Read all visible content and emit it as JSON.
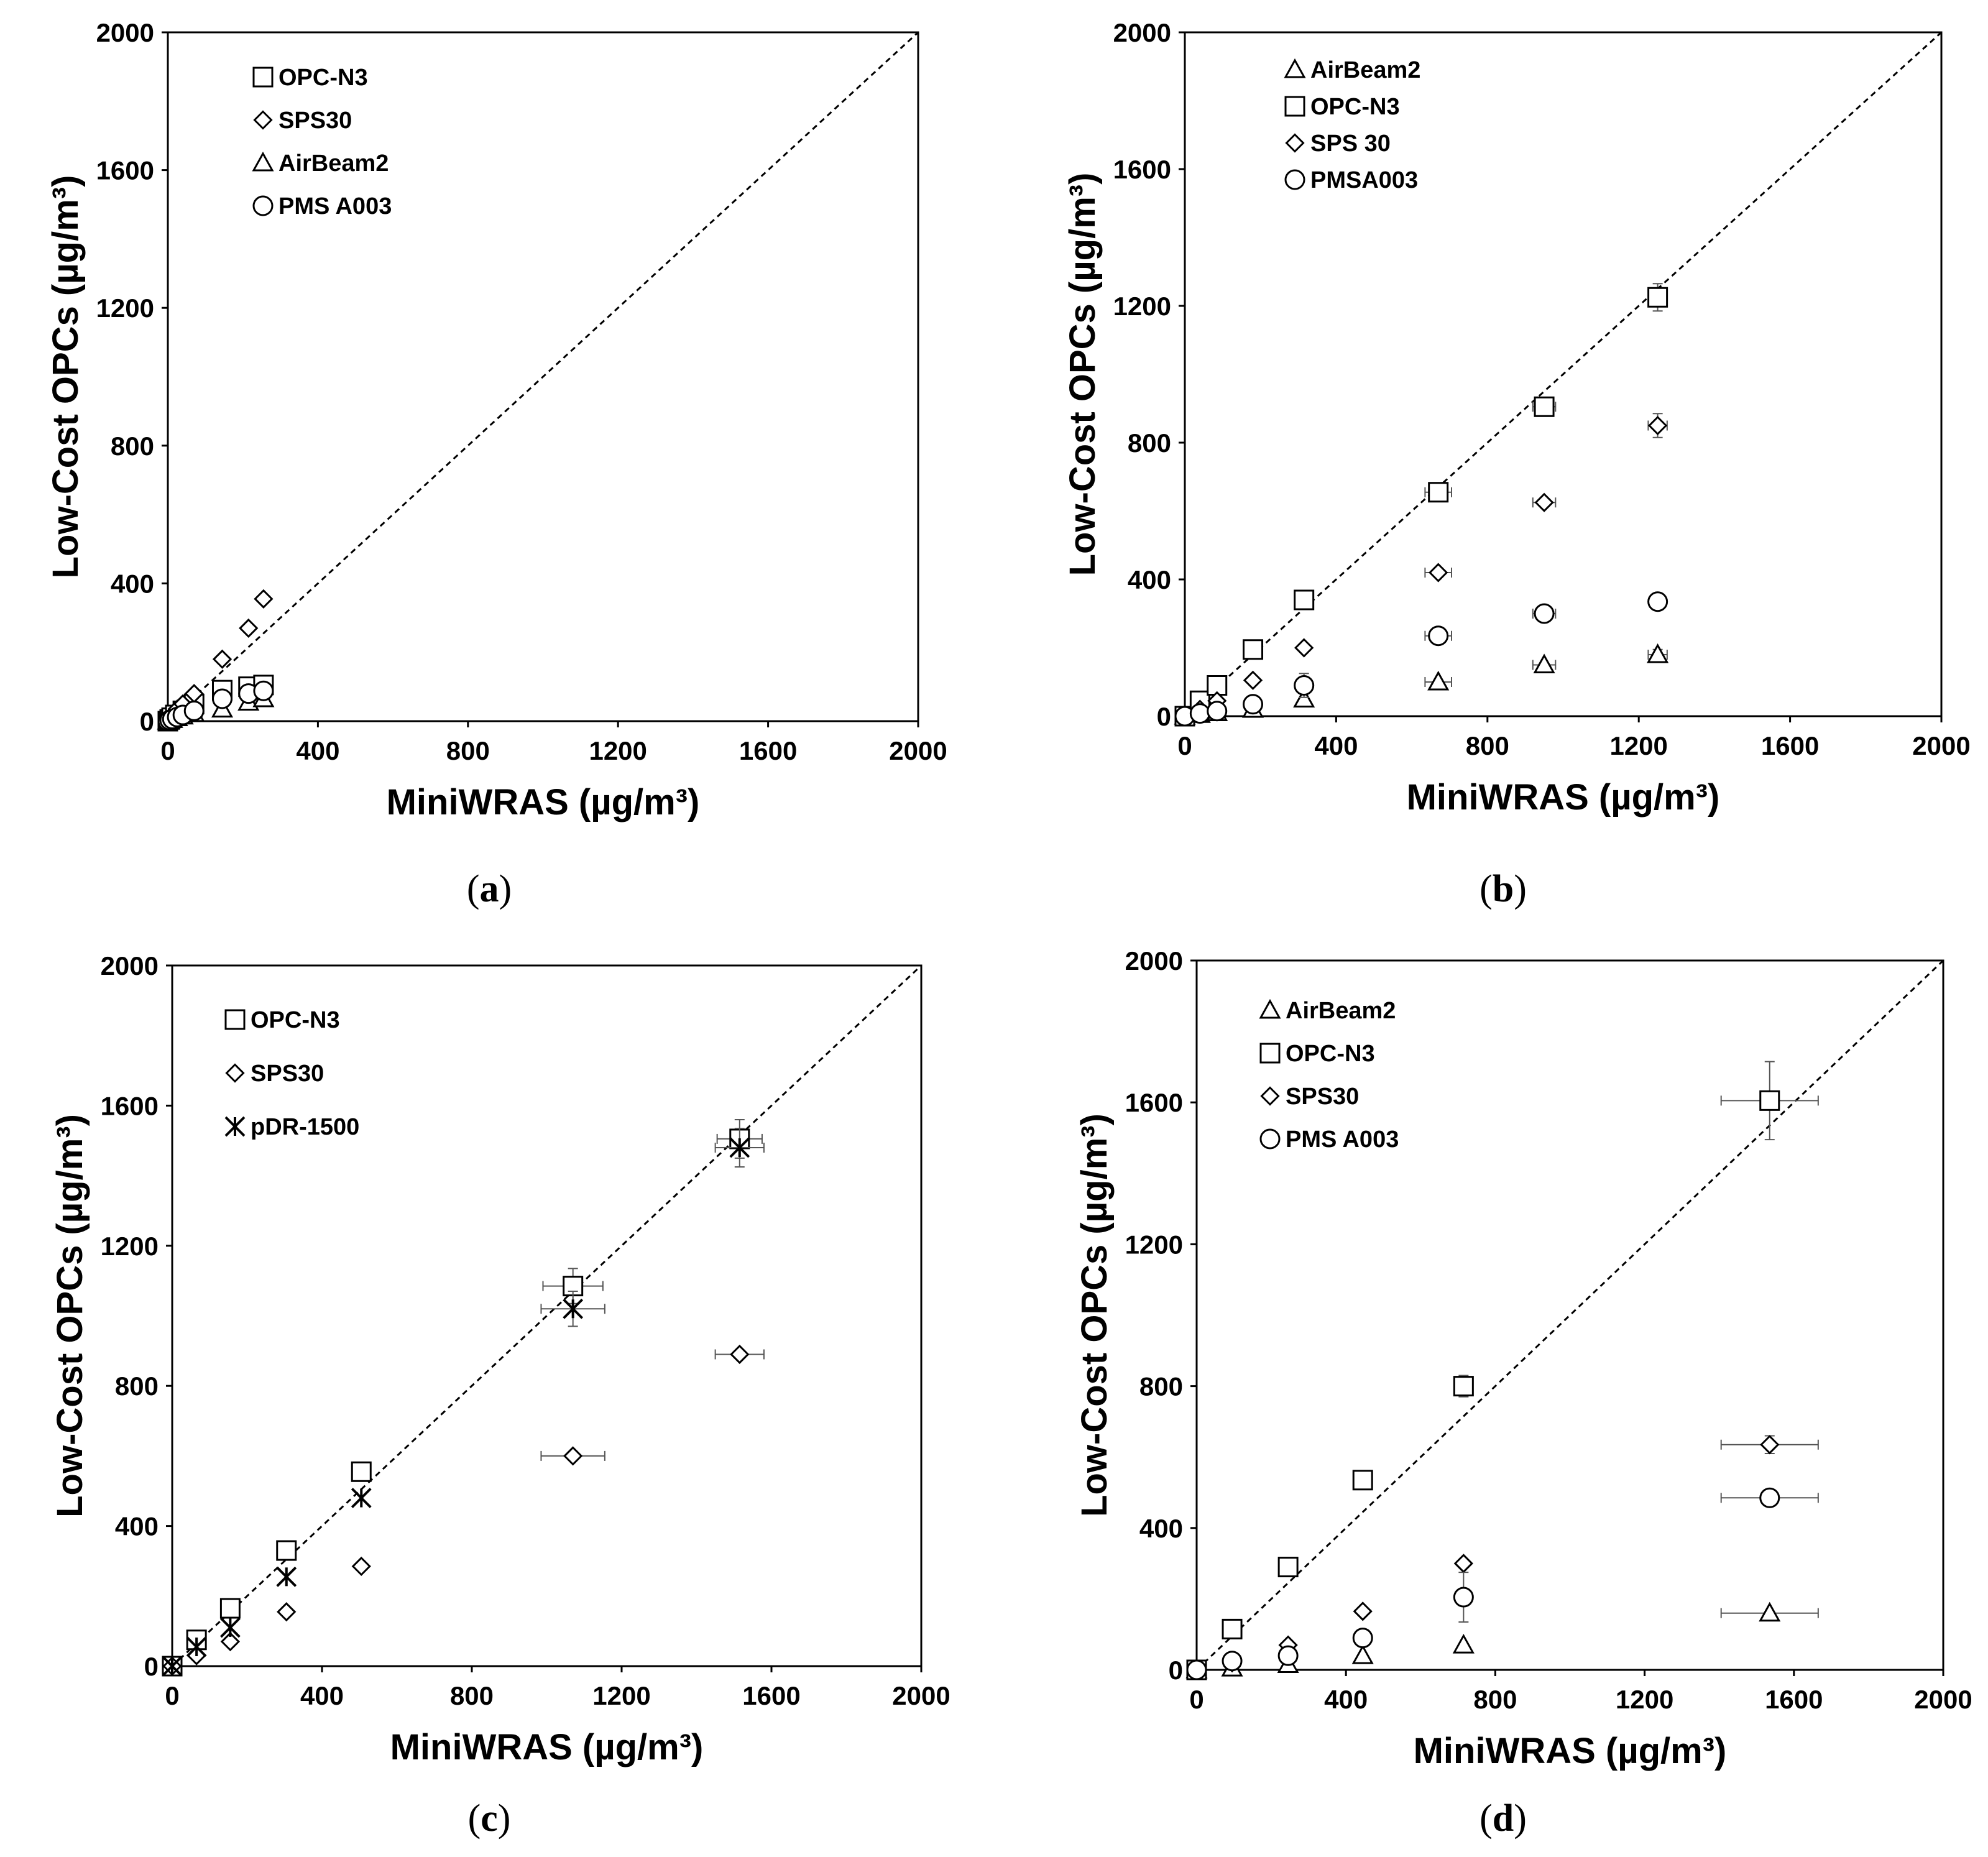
{
  "figure": {
    "panels": [
      "a",
      "b",
      "c",
      "d"
    ]
  },
  "chart_data": [
    {
      "id": "a",
      "type": "scatter",
      "caption_letter": "a",
      "xlabel": "MiniWRAS (µg/m³)",
      "ylabel": "Low-Cost OPCs (µg/m³)",
      "xlim": [
        0,
        2000
      ],
      "ylim": [
        0,
        2000
      ],
      "xticks": [
        "0",
        "400",
        "800",
        "1200",
        "1600",
        "2000"
      ],
      "yticks": [
        "0",
        "400",
        "800",
        "1200",
        "1600",
        "2000"
      ],
      "reference_line": "1:1",
      "legend": "top-left",
      "series": [
        {
          "name": "OPC-N3",
          "marker": "square",
          "points": [
            [
              0,
              0
            ],
            [
              5,
              5
            ],
            [
              10,
              10
            ],
            [
              20,
              18
            ],
            [
              40,
              30
            ],
            [
              70,
              50
            ],
            [
              145,
              90
            ],
            [
              215,
              100
            ],
            [
              255,
              105
            ]
          ],
          "xerr": [
            0,
            0,
            0,
            0,
            0,
            0,
            0,
            0,
            0
          ],
          "yerr": [
            0,
            0,
            0,
            0,
            0,
            0,
            0,
            0,
            0
          ]
        },
        {
          "name": "SPS30",
          "marker": "diamond",
          "points": [
            [
              0,
              0
            ],
            [
              5,
              8
            ],
            [
              12,
              18
            ],
            [
              25,
              35
            ],
            [
              40,
              50
            ],
            [
              70,
              80
            ],
            [
              145,
              180
            ],
            [
              215,
              270
            ],
            [
              255,
              355
            ]
          ],
          "xerr": [
            0,
            0,
            0,
            0,
            0,
            0,
            0,
            0,
            0
          ],
          "yerr": [
            0,
            0,
            0,
            0,
            0,
            0,
            0,
            0,
            0
          ]
        },
        {
          "name": "AirBeam2",
          "marker": "triangle",
          "points": [
            [
              0,
              0
            ],
            [
              5,
              3
            ],
            [
              12,
              5
            ],
            [
              25,
              10
            ],
            [
              40,
              15
            ],
            [
              70,
              22
            ],
            [
              145,
              35
            ],
            [
              215,
              55
            ],
            [
              255,
              65
            ]
          ],
          "xerr": [
            0,
            0,
            0,
            0,
            0,
            0,
            0,
            0,
            0
          ],
          "yerr": [
            0,
            0,
            0,
            0,
            0,
            0,
            0,
            0,
            0
          ]
        },
        {
          "name": "PMS A003",
          "marker": "circle",
          "points": [
            [
              0,
              0
            ],
            [
              5,
              3
            ],
            [
              12,
              6
            ],
            [
              25,
              12
            ],
            [
              40,
              18
            ],
            [
              70,
              30
            ],
            [
              145,
              65
            ],
            [
              215,
              80
            ],
            [
              255,
              88
            ]
          ],
          "xerr": [
            0,
            0,
            0,
            0,
            0,
            0,
            0,
            0,
            0
          ],
          "yerr": [
            0,
            0,
            0,
            0,
            0,
            0,
            0,
            0,
            0
          ]
        }
      ]
    },
    {
      "id": "b",
      "type": "scatter",
      "caption_letter": "b",
      "xlabel": "MiniWRAS (µg/m³)",
      "ylabel": "Low-Cost OPCs (µg/m³)",
      "xlim": [
        0,
        2000
      ],
      "ylim": [
        0,
        2000
      ],
      "xticks": [
        "0",
        "400",
        "800",
        "1200",
        "1600",
        "2000"
      ],
      "yticks": [
        "0",
        "400",
        "800",
        "1200",
        "1600",
        "2000"
      ],
      "reference_line": "1:1",
      "legend": "top-left",
      "series": [
        {
          "name": "AirBeam2",
          "marker": "triangle",
          "points": [
            [
              0,
              0
            ],
            [
              40,
              5
            ],
            [
              85,
              10
            ],
            [
              180,
              20
            ],
            [
              315,
              50
            ],
            [
              670,
              100
            ],
            [
              950,
              150
            ],
            [
              1250,
              180
            ]
          ],
          "xerr": [
            0,
            0,
            0,
            0,
            0,
            35,
            30,
            25
          ],
          "yerr": [
            0,
            0,
            0,
            0,
            0,
            0,
            0,
            15
          ]
        },
        {
          "name": "OPC-N3",
          "marker": "square",
          "points": [
            [
              0,
              0
            ],
            [
              40,
              45
            ],
            [
              85,
              90
            ],
            [
              180,
              195
            ],
            [
              315,
              340
            ],
            [
              670,
              655
            ],
            [
              950,
              905
            ],
            [
              1250,
              1225
            ]
          ],
          "xerr": [
            0,
            0,
            0,
            0,
            0,
            35,
            30,
            20
          ],
          "yerr": [
            0,
            0,
            0,
            0,
            0,
            0,
            15,
            40
          ]
        },
        {
          "name": "SPS 30",
          "marker": "diamond",
          "points": [
            [
              0,
              0
            ],
            [
              40,
              20
            ],
            [
              85,
              45
            ],
            [
              180,
              105
            ],
            [
              315,
              200
            ],
            [
              670,
              420
            ],
            [
              950,
              625
            ],
            [
              1250,
              850
            ]
          ],
          "xerr": [
            0,
            0,
            0,
            0,
            0,
            35,
            30,
            25
          ],
          "yerr": [
            0,
            0,
            0,
            0,
            0,
            0,
            0,
            35
          ]
        },
        {
          "name": "PMSA003",
          "marker": "circle",
          "points": [
            [
              0,
              0
            ],
            [
              40,
              8
            ],
            [
              85,
              15
            ],
            [
              180,
              35
            ],
            [
              315,
              90
            ],
            [
              670,
              235
            ],
            [
              950,
              300
            ],
            [
              1250,
              335
            ]
          ],
          "xerr": [
            0,
            0,
            0,
            0,
            0,
            35,
            30,
            20
          ],
          "yerr": [
            0,
            0,
            0,
            0,
            35,
            0,
            20,
            0
          ]
        }
      ]
    },
    {
      "id": "c",
      "type": "scatter",
      "caption_letter": "c",
      "xlabel": "MiniWRAS (µg/m³)",
      "ylabel": "Low-Cost OPCs (µg/m³)",
      "xlim": [
        0,
        2000
      ],
      "ylim": [
        0,
        2000
      ],
      "xticks": [
        "0",
        "400",
        "800",
        "1200",
        "1600",
        "2000"
      ],
      "yticks": [
        "0",
        "400",
        "800",
        "1200",
        "1600",
        "2000"
      ],
      "reference_line": "1:1",
      "legend": "top-left",
      "series": [
        {
          "name": "OPC-N3",
          "marker": "square",
          "points": [
            [
              0,
              0
            ],
            [
              65,
              75
            ],
            [
              155,
              165
            ],
            [
              305,
              330
            ],
            [
              505,
              555
            ],
            [
              1070,
              1085
            ],
            [
              1515,
              1505
            ]
          ],
          "xerr": [
            0,
            0,
            0,
            0,
            0,
            80,
            60
          ],
          "yerr": [
            0,
            0,
            0,
            0,
            0,
            50,
            55
          ]
        },
        {
          "name": "SPS30",
          "marker": "diamond",
          "points": [
            [
              0,
              0
            ],
            [
              65,
              30
            ],
            [
              155,
              70
            ],
            [
              305,
              155
            ],
            [
              505,
              285
            ],
            [
              1070,
              600
            ],
            [
              1515,
              890
            ]
          ],
          "xerr": [
            0,
            0,
            0,
            0,
            0,
            85,
            65
          ],
          "yerr": [
            0,
            0,
            0,
            0,
            0,
            0,
            0
          ]
        },
        {
          "name": "pDR-1500",
          "marker": "asterisk",
          "points": [
            [
              0,
              0
            ],
            [
              65,
              55
            ],
            [
              155,
              110
            ],
            [
              305,
              255
            ],
            [
              505,
              480
            ],
            [
              1070,
              1020
            ],
            [
              1515,
              1480
            ]
          ],
          "xerr": [
            0,
            0,
            0,
            0,
            0,
            85,
            65
          ],
          "yerr": [
            0,
            0,
            0,
            0,
            0,
            50,
            55
          ]
        }
      ]
    },
    {
      "id": "d",
      "type": "scatter",
      "caption_letter": "d",
      "xlabel": "MiniWRAS (µg/m³)",
      "ylabel": "Low-Cost OPCs (µg/m³)",
      "xlim": [
        0,
        2000
      ],
      "ylim": [
        0,
        2000
      ],
      "xticks": [
        "0",
        "400",
        "800",
        "1200",
        "1600",
        "2000"
      ],
      "yticks": [
        "0",
        "400",
        "800",
        "1200",
        "1600",
        "2000"
      ],
      "reference_line": "1:1",
      "legend": "top-left",
      "series": [
        {
          "name": "AirBeam2",
          "marker": "triangle",
          "points": [
            [
              0,
              0
            ],
            [
              95,
              5
            ],
            [
              245,
              15
            ],
            [
              445,
              40
            ],
            [
              715,
              70
            ],
            [
              1535,
              160
            ]
          ],
          "xerr": [
            0,
            0,
            0,
            0,
            0,
            130
          ],
          "yerr": [
            0,
            0,
            0,
            0,
            0,
            0
          ]
        },
        {
          "name": "OPC-N3",
          "marker": "square",
          "points": [
            [
              0,
              0
            ],
            [
              95,
              115
            ],
            [
              245,
              290
            ],
            [
              445,
              535
            ],
            [
              715,
              800
            ],
            [
              1535,
              1605
            ]
          ],
          "xerr": [
            0,
            0,
            0,
            0,
            0,
            130
          ],
          "yerr": [
            0,
            0,
            0,
            0,
            30,
            110
          ]
        },
        {
          "name": "SPS30",
          "marker": "diamond",
          "points": [
            [
              0,
              0
            ],
            [
              95,
              20
            ],
            [
              245,
              70
            ],
            [
              445,
              165
            ],
            [
              715,
              300
            ],
            [
              1535,
              635
            ]
          ],
          "xerr": [
            0,
            0,
            0,
            0,
            0,
            130
          ],
          "yerr": [
            0,
            0,
            0,
            0,
            0,
            25
          ]
        },
        {
          "name": "PMS A003",
          "marker": "circle",
          "points": [
            [
              0,
              0
            ],
            [
              95,
              25
            ],
            [
              245,
              40
            ],
            [
              445,
              90
            ],
            [
              715,
              205
            ],
            [
              1535,
              485
            ]
          ],
          "xerr": [
            0,
            0,
            0,
            0,
            0,
            130
          ],
          "yerr": [
            0,
            0,
            0,
            20,
            70,
            0
          ]
        }
      ]
    }
  ]
}
